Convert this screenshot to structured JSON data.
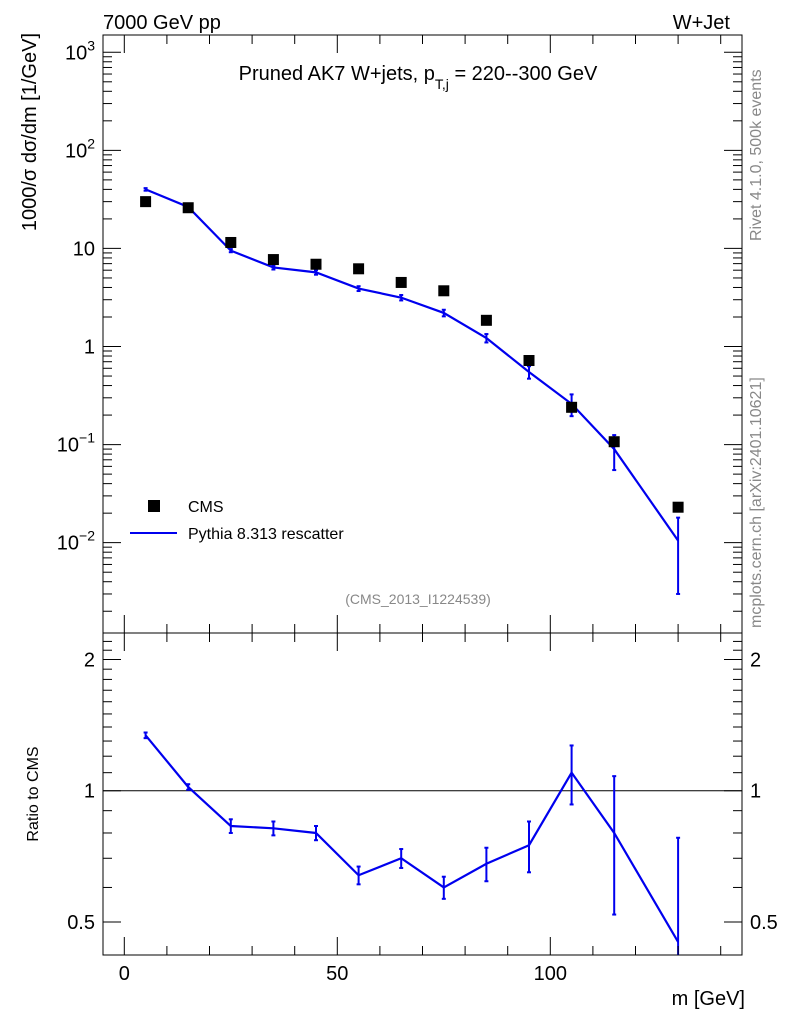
{
  "header": {
    "left": "7000 GeV pp",
    "right": "W+Jet"
  },
  "side": {
    "rivet": "Rivet 4.1.0,  500k events",
    "site": "mcplots.cern.ch [arXiv:2401.10621]"
  },
  "chart_data": [
    {
      "type": "scatter",
      "panel": "main",
      "title_main": "Pruned AK7 W+jets, p",
      "title_sub": "T,j",
      "title_rest": " = 220--300 GeV",
      "ylabel": "1000/σ  dσ/dm [1/GeV]",
      "yscale": "log",
      "ylim": [
        0.0012,
        1500
      ],
      "xlim": [
        -5,
        145
      ],
      "yticks": [
        {
          "value": 0.01,
          "base": "10",
          "exp": "−2"
        },
        {
          "value": 0.1,
          "base": "10",
          "exp": "−1"
        },
        {
          "value": 1,
          "base": "1",
          "exp": ""
        },
        {
          "value": 10,
          "base": "10",
          "exp": ""
        },
        {
          "value": 100,
          "base": "10",
          "exp": "2"
        },
        {
          "value": 1000,
          "base": "10",
          "exp": "3"
        }
      ],
      "watermark": "(CMS_2013_I1224539)",
      "series": [
        {
          "name": "CMS",
          "style": "markers",
          "color": "#000000",
          "x": [
            5,
            15,
            25,
            35,
            45,
            55,
            65,
            75,
            85,
            95,
            105,
            115,
            130
          ],
          "y": [
            30,
            26,
            11.5,
            7.7,
            6.9,
            6.2,
            4.5,
            3.7,
            1.85,
            0.72,
            0.24,
            0.107,
            0.023
          ]
        },
        {
          "name": "Pythia 8.313 rescatter",
          "style": "line",
          "color": "#0000ee",
          "x": [
            5,
            15,
            25,
            35,
            45,
            55,
            65,
            75,
            85,
            95,
            105,
            115,
            130
          ],
          "y": [
            40,
            26.5,
            9.5,
            6.4,
            5.7,
            3.9,
            3.15,
            2.2,
            1.22,
            0.55,
            0.26,
            0.09,
            0.0105
          ],
          "err": [
            1.2,
            0.8,
            0.35,
            0.3,
            0.3,
            0.22,
            0.2,
            0.17,
            0.12,
            0.08,
            0.065,
            0.035,
            0.0075
          ]
        }
      ]
    },
    {
      "type": "line",
      "panel": "ratio",
      "ylabel": "Ratio to CMS",
      "xlabel": "m [GeV]",
      "yscale": "log",
      "ylim": [
        0.42,
        2.3
      ],
      "xlim": [
        -5,
        145
      ],
      "yticks": [
        0.5,
        1,
        2
      ],
      "xticks": [
        0,
        50,
        100
      ],
      "reference": 1,
      "series": [
        {
          "name": "Pythia 8.313 rescatter",
          "color": "#0000ee",
          "x": [
            5,
            15,
            25,
            35,
            45,
            55,
            65,
            75,
            85,
            95,
            105,
            115,
            130
          ],
          "y": [
            1.34,
            1.02,
            0.83,
            0.82,
            0.8,
            0.64,
            0.7,
            0.6,
            0.68,
            0.75,
            1.1,
            0.8,
            0.45
          ],
          "err": [
            0.02,
            0.015,
            0.03,
            0.03,
            0.03,
            0.03,
            0.035,
            0.035,
            0.06,
            0.1,
            0.17,
            0.28,
            0.33
          ]
        }
      ]
    }
  ]
}
